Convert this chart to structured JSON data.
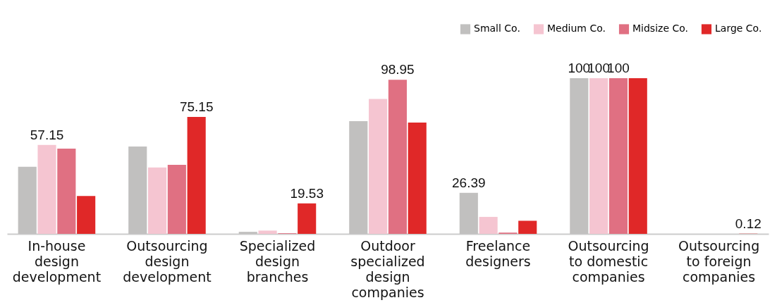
{
  "chart_data": {
    "type": "bar",
    "categories": [
      "In-house design development",
      "Outsourcing design development",
      "Specialized design branches",
      "Outdoor specialized design companies",
      "Freelance designers",
      "Outsourcing to domestic companies",
      "Outsourcing to foreign companies"
    ],
    "series": [
      {
        "name": "Small Co.",
        "color": "#c1c0bf",
        "values": [
          43.1,
          56.1,
          1.3,
          72.4,
          26.39,
          100,
          null
        ],
        "value_labels": [
          null,
          null,
          null,
          null,
          "26.39",
          "100",
          null
        ]
      },
      {
        "name": "Medium Co.",
        "color": "#f5c5d1",
        "values": [
          57.15,
          42.7,
          2.1,
          86.6,
          10.9,
          100,
          null
        ],
        "value_labels": [
          "57.15",
          null,
          null,
          null,
          null,
          "100",
          null
        ]
      },
      {
        "name": "Midsize Co.",
        "color": "#e07082",
        "values": [
          54.8,
          44.4,
          0.4,
          98.95,
          0.8,
          100,
          null
        ],
        "value_labels": [
          null,
          null,
          null,
          "98.95",
          null,
          "100",
          null
        ]
      },
      {
        "name": "Large Co.",
        "color": "#e02828",
        "values": [
          24.3,
          75.15,
          19.53,
          71.5,
          8.4,
          100,
          0.12
        ],
        "value_labels": [
          null,
          "75.15",
          "19.53",
          null,
          null,
          null,
          "0.12"
        ]
      }
    ],
    "legend": "top right",
    "tick_labels": "x"
  }
}
